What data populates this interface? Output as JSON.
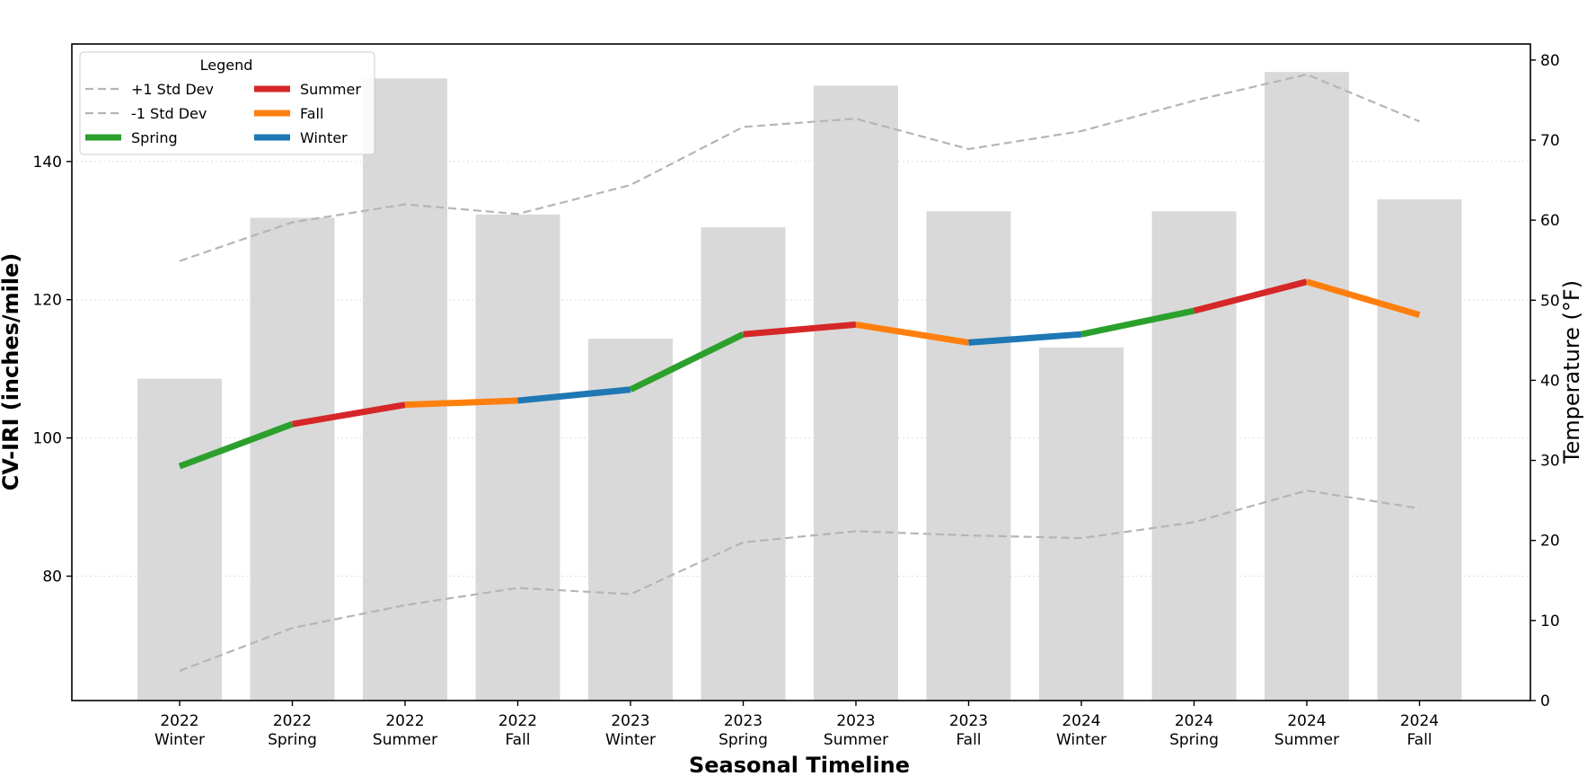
{
  "chart_data": {
    "type": "line",
    "title": "",
    "xlabel": "Seasonal Timeline",
    "ylabel": "CV-IRI (inches/mile)",
    "y2label": "Temperature (°F)",
    "categories": [
      {
        "year": "2022",
        "season": "Winter"
      },
      {
        "year": "2022",
        "season": "Spring"
      },
      {
        "year": "2022",
        "season": "Summer"
      },
      {
        "year": "2022",
        "season": "Fall"
      },
      {
        "year": "2023",
        "season": "Winter"
      },
      {
        "year": "2023",
        "season": "Spring"
      },
      {
        "year": "2023",
        "season": "Summer"
      },
      {
        "year": "2023",
        "season": "Fall"
      },
      {
        "year": "2024",
        "season": "Winter"
      },
      {
        "year": "2024",
        "season": "Spring"
      },
      {
        "year": "2024",
        "season": "Summer"
      },
      {
        "year": "2024",
        "season": "Fall"
      }
    ],
    "series": [
      {
        "name": "CV-IRI",
        "axis": "left",
        "values": [
          95.9,
          102.0,
          104.8,
          105.4,
          107.0,
          115.0,
          116.4,
          113.8,
          115.0,
          118.4,
          122.6,
          117.8
        ]
      },
      {
        "name": "+1 Std Dev",
        "axis": "left",
        "style": "dashed",
        "values": [
          125.6,
          131.2,
          133.8,
          132.4,
          136.6,
          145.0,
          146.2,
          141.8,
          144.4,
          148.8,
          152.6,
          145.8
        ]
      },
      {
        "name": "-1 Std Dev",
        "axis": "left",
        "style": "dashed",
        "values": [
          66.3,
          72.5,
          75.8,
          78.3,
          77.4,
          84.9,
          86.5,
          85.9,
          85.5,
          87.8,
          92.4,
          89.8
        ]
      },
      {
        "name": "Temperature",
        "axis": "right",
        "type": "bar",
        "values": [
          40.2,
          60.3,
          77.7,
          60.7,
          45.2,
          59.1,
          76.8,
          61.1,
          44.1,
          61.1,
          78.5,
          62.6
        ]
      }
    ],
    "segment_season_colors": [
      "Spring",
      "Summer",
      "Fall",
      "Winter",
      "Spring",
      "Summer",
      "Fall",
      "Winter",
      "Spring",
      "Summer",
      "Fall"
    ],
    "ylim": [
      62,
      157
    ],
    "y2lim": [
      0,
      82
    ],
    "yticks": [
      80,
      100,
      120,
      140
    ],
    "y2ticks": [
      0,
      10,
      20,
      30,
      40,
      50,
      60,
      70,
      80
    ],
    "grid": "horizontal dotted",
    "legend": {
      "title": "Legend",
      "placement": "top-left",
      "entries": [
        {
          "label": "+1 Std Dev",
          "style": "dashed",
          "color": "#b5b5b5"
        },
        {
          "label": "-1 Std Dev",
          "style": "dashed",
          "color": "#b5b5b5"
        },
        {
          "label": "Spring",
          "style": "solid",
          "color": "#2ca02c"
        },
        {
          "label": "Summer",
          "style": "solid",
          "color": "#d62728"
        },
        {
          "label": "Fall",
          "style": "solid",
          "color": "#ff7f0e"
        },
        {
          "label": "Winter",
          "style": "solid",
          "color": "#1f77b4"
        }
      ]
    },
    "colors": {
      "Spring": "#2ca02c",
      "Summer": "#d62728",
      "Fall": "#ff7f0e",
      "Winter": "#1f77b4",
      "std": "#b5b5b5",
      "bar": "#d9d9d9",
      "grid": "#dddddd"
    }
  }
}
